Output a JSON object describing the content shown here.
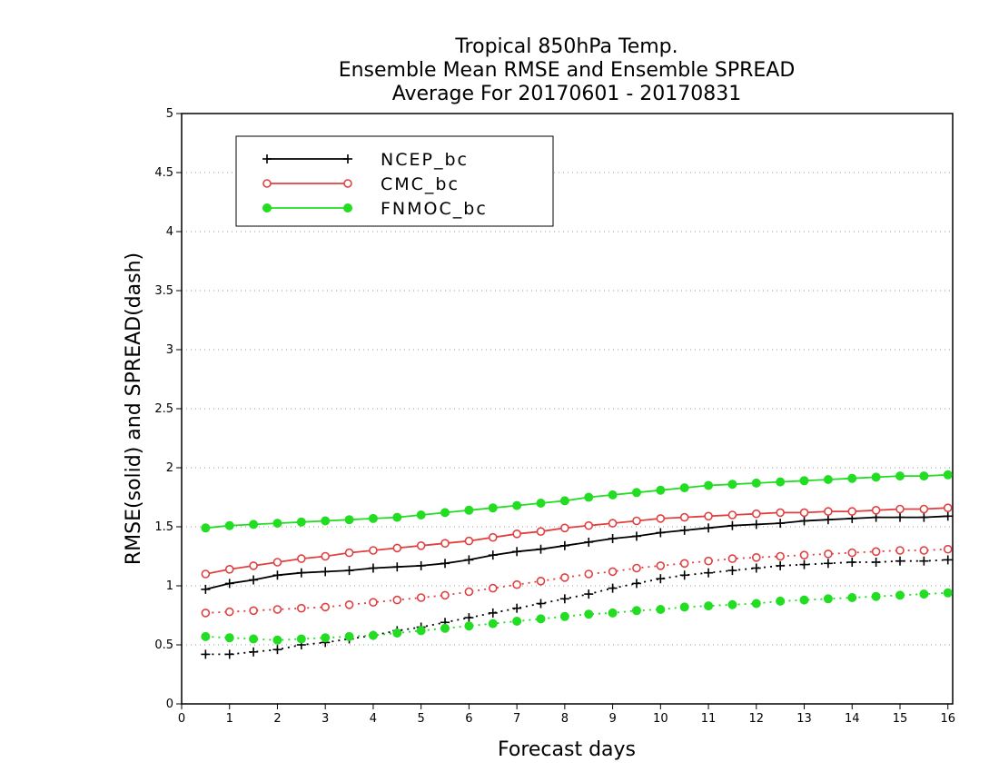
{
  "chart_data": {
    "type": "line",
    "title": [
      "Tropical 850hPa Temp.",
      "Ensemble Mean RMSE and Ensemble SPREAD",
      "Average For 20170601 - 20170831"
    ],
    "xlabel": "Forecast days",
    "ylabel": "RMSE(solid) and SPREAD(dash)",
    "xlim": [
      0,
      16.1
    ],
    "ylim": [
      0,
      5
    ],
    "xticks": [
      "0",
      "1",
      "2",
      "3",
      "4",
      "5",
      "6",
      "7",
      "8",
      "9",
      "10",
      "11",
      "12",
      "13",
      "14",
      "15",
      "16"
    ],
    "yticks": [
      "0",
      "0.5",
      "1",
      "1.5",
      "2",
      "2.5",
      "3",
      "3.5",
      "4",
      "4.5",
      "5"
    ],
    "grid": "horizontal dotted",
    "legend_position": "top-left",
    "x": [
      0.5,
      1,
      1.5,
      2,
      2.5,
      3,
      3.5,
      4,
      4.5,
      5,
      5.5,
      6,
      6.5,
      7,
      7.5,
      8,
      8.5,
      9,
      9.5,
      10,
      10.5,
      11,
      11.5,
      12,
      12.5,
      13,
      13.5,
      14,
      14.5,
      15,
      15.5,
      16
    ],
    "series": [
      {
        "name": "NCEP_bc",
        "color": "#000000",
        "marker": "plus",
        "rmse": [
          0.97,
          1.02,
          1.05,
          1.09,
          1.11,
          1.12,
          1.13,
          1.15,
          1.16,
          1.17,
          1.19,
          1.22,
          1.26,
          1.29,
          1.31,
          1.34,
          1.37,
          1.4,
          1.42,
          1.45,
          1.47,
          1.49,
          1.51,
          1.52,
          1.53,
          1.55,
          1.56,
          1.57,
          1.58,
          1.58,
          1.58,
          1.59
        ],
        "spread": [
          0.42,
          0.42,
          0.44,
          0.46,
          0.5,
          0.52,
          0.55,
          0.58,
          0.62,
          0.65,
          0.69,
          0.73,
          0.77,
          0.81,
          0.85,
          0.89,
          0.93,
          0.98,
          1.02,
          1.06,
          1.09,
          1.11,
          1.13,
          1.15,
          1.17,
          1.18,
          1.19,
          1.2,
          1.2,
          1.21,
          1.21,
          1.22
        ]
      },
      {
        "name": "CMC_bc",
        "color": "#e04040",
        "marker": "open-circle",
        "rmse": [
          1.1,
          1.14,
          1.17,
          1.2,
          1.23,
          1.25,
          1.28,
          1.3,
          1.32,
          1.34,
          1.36,
          1.38,
          1.41,
          1.44,
          1.46,
          1.49,
          1.51,
          1.53,
          1.55,
          1.57,
          1.58,
          1.59,
          1.6,
          1.61,
          1.62,
          1.62,
          1.63,
          1.63,
          1.64,
          1.65,
          1.65,
          1.66
        ],
        "spread": [
          0.77,
          0.78,
          0.79,
          0.8,
          0.81,
          0.82,
          0.84,
          0.86,
          0.88,
          0.9,
          0.92,
          0.95,
          0.98,
          1.01,
          1.04,
          1.07,
          1.1,
          1.12,
          1.15,
          1.17,
          1.19,
          1.21,
          1.23,
          1.24,
          1.25,
          1.26,
          1.27,
          1.28,
          1.29,
          1.3,
          1.3,
          1.31
        ]
      },
      {
        "name": "FNMOC_bc",
        "color": "#22dd22",
        "marker": "filled-circle",
        "rmse": [
          1.49,
          1.51,
          1.52,
          1.53,
          1.54,
          1.55,
          1.56,
          1.57,
          1.58,
          1.6,
          1.62,
          1.64,
          1.66,
          1.68,
          1.7,
          1.72,
          1.75,
          1.77,
          1.79,
          1.81,
          1.83,
          1.85,
          1.86,
          1.87,
          1.88,
          1.89,
          1.9,
          1.91,
          1.92,
          1.93,
          1.93,
          1.94
        ],
        "spread": [
          0.57,
          0.56,
          0.55,
          0.54,
          0.55,
          0.56,
          0.57,
          0.58,
          0.6,
          0.62,
          0.64,
          0.66,
          0.68,
          0.7,
          0.72,
          0.74,
          0.76,
          0.77,
          0.79,
          0.8,
          0.82,
          0.83,
          0.84,
          0.85,
          0.87,
          0.88,
          0.89,
          0.9,
          0.91,
          0.92,
          0.93,
          0.94
        ]
      }
    ]
  }
}
